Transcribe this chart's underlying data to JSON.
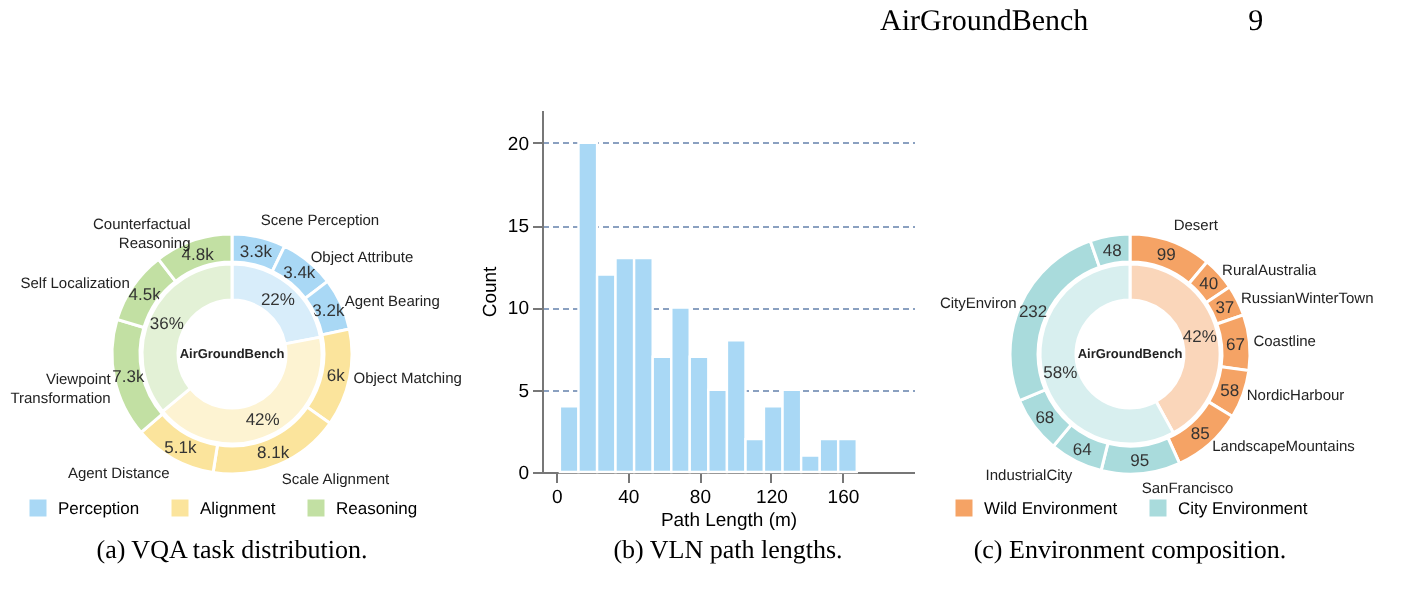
{
  "chart_data": [
    {
      "type": "donut",
      "annotations": [
        "(a) VQA task distribution."
      ],
      "categories": [
        "Scene Perception",
        "Object Attribute",
        "Agent Bearing",
        "Object Matching",
        "Scale Alignment",
        "Agent Distance",
        "Viewpoint Transformation",
        "Self Localization",
        "Counterfactual Reasoning"
      ],
      "values": [
        3300,
        3400,
        3200,
        6000,
        8100,
        5100,
        7300,
        4500,
        4800
      ],
      "value_labels": [
        "3.3k",
        "3.4k",
        "3.2k",
        "6k",
        "8.1k",
        "5.1k",
        "7.3k",
        "4.5k",
        "4.8k"
      ],
      "colors": [
        "#a9d8f5",
        "#a9d8f5",
        "#a9d8f5",
        "#fbe49c",
        "#fbe49c",
        "#fbe49c",
        "#c2e0a3",
        "#c2e0a3",
        "#c2e0a3"
      ]
    },
    {
      "type": "donut",
      "title": "AirGroundBench",
      "categories": [
        "Perception",
        "Alignment",
        "Reasoning"
      ],
      "values": [
        22,
        42,
        36
      ],
      "value_labels": [
        "22%",
        "42%",
        "36%"
      ],
      "colors": [
        "#a9d8f5",
        "#fbe49c",
        "#c2e0a3"
      ],
      "legend": "bottom"
    },
    {
      "type": "histogram",
      "annotations": [
        "(b) VLN path lengths."
      ],
      "xlabel": "Path Length (m)",
      "ylabel": "Count",
      "bins": [
        2,
        12.4,
        22.8,
        33.1,
        43.5,
        53.9,
        64.3,
        74.6,
        85,
        95.4,
        105.8,
        116.1,
        126.5,
        136.9,
        147.3,
        157.6,
        168
      ],
      "values": [
        4,
        20,
        12,
        13,
        13,
        7,
        10,
        7,
        5,
        8,
        2,
        4,
        5,
        1,
        2,
        2
      ],
      "color": "#a9d8f5",
      "xlim": [
        -8,
        200
      ],
      "xticks": [
        0,
        40,
        80,
        120,
        160
      ],
      "ylim": [
        0,
        22
      ],
      "yticks": [
        0,
        5,
        10,
        15,
        20
      ],
      "grid": "y"
    },
    {
      "type": "donut",
      "annotations": [
        "(c) Environment composition.",
        "AirGroundBench",
        "9"
      ],
      "categories": [
        "Desert",
        "RuralAustralia",
        "RussianWinterTown",
        "Coastline",
        "NordicHarbour",
        "LandscapeMountains",
        "SanFrancisco",
        "IndustrialCity",
        null,
        "CityEnviron",
        null
      ],
      "values": [
        99,
        40,
        37,
        67,
        58,
        85,
        95,
        64,
        68,
        232,
        48
      ],
      "data_labels": true,
      "colors": [
        "#f5a365",
        "#f5a365",
        "#f5a365",
        "#f5a365",
        "#f5a365",
        "#f5a365",
        "#a9dbdc",
        "#a9dbdc",
        "#a9dbdc",
        "#a9dbdc",
        "#a9dbdc"
      ]
    },
    {
      "type": "donut",
      "title": "AirGroundBench",
      "categories": [
        "Wild Environment",
        "City Environment"
      ],
      "values": [
        42,
        58
      ],
      "value_labels": [
        "42%",
        "58%"
      ],
      "colors": [
        "#f5a365",
        "#a9dbdc"
      ],
      "legend": "bottom"
    }
  ]
}
